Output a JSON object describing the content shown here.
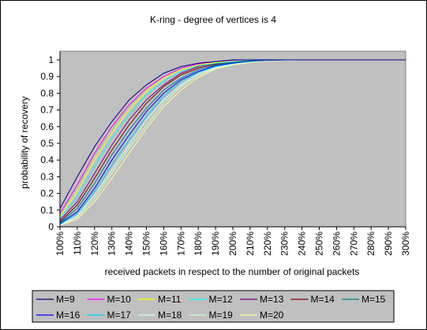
{
  "chart_data": {
    "type": "line",
    "title": "K-ring - degree of vertices is 4",
    "xlabel": "received packets in respect to the number of original packets",
    "ylabel": "probability of recovery",
    "x": [
      1.0,
      1.1,
      1.2,
      1.3,
      1.4,
      1.5,
      1.6,
      1.7,
      1.8,
      1.9,
      2.0,
      2.1,
      2.2,
      2.3,
      2.4,
      2.5,
      2.6,
      2.7,
      2.8,
      2.9,
      3.0
    ],
    "x_tick_labels": [
      "100%",
      "110%",
      "120%",
      "130%",
      "140%",
      "150%",
      "160%",
      "170%",
      "180%",
      "190%",
      "200%",
      "210%",
      "220%",
      "230%",
      "240%",
      "250%",
      "260%",
      "270%",
      "280%",
      "290%",
      "300%"
    ],
    "y_tick_labels": [
      "0",
      "0.1",
      "0.2",
      "0.3",
      "0.4",
      "0.5",
      "0.6",
      "0.7",
      "0.8",
      "0.9",
      "1"
    ],
    "xlim": [
      1.0,
      3.0
    ],
    "ylim": [
      0,
      1.05
    ],
    "grid": false,
    "plot_background": "#C0C0C0",
    "legend_placement": "bottom",
    "series": [
      {
        "name": "M=9",
        "color": "#000080",
        "values": [
          0.11,
          0.3,
          0.48,
          0.63,
          0.76,
          0.85,
          0.92,
          0.96,
          0.98,
          0.99,
          1.0,
          1.0,
          1.0,
          1.0,
          1.0,
          1.0,
          1.0,
          1.0,
          1.0,
          1.0,
          1.0
        ]
      },
      {
        "name": "M=10",
        "color": "#FF00FF",
        "values": [
          0.08,
          0.25,
          0.44,
          0.6,
          0.73,
          0.83,
          0.9,
          0.95,
          0.975,
          0.99,
          0.997,
          1.0,
          1.0,
          1.0,
          1.0,
          1.0,
          1.0,
          1.0,
          1.0,
          1.0,
          1.0
        ]
      },
      {
        "name": "M=11",
        "color": "#FFFF00",
        "values": [
          0.06,
          0.21,
          0.4,
          0.56,
          0.7,
          0.81,
          0.89,
          0.94,
          0.97,
          0.985,
          0.995,
          1.0,
          1.0,
          1.0,
          1.0,
          1.0,
          1.0,
          1.0,
          1.0,
          1.0,
          1.0
        ]
      },
      {
        "name": "M=12",
        "color": "#00FFFF",
        "values": [
          0.05,
          0.18,
          0.36,
          0.53,
          0.67,
          0.79,
          0.87,
          0.93,
          0.965,
          0.98,
          0.99,
          0.998,
          1.0,
          1.0,
          1.0,
          1.0,
          1.0,
          1.0,
          1.0,
          1.0,
          1.0
        ]
      },
      {
        "name": "M=13",
        "color": "#800080",
        "values": [
          0.04,
          0.15,
          0.32,
          0.49,
          0.64,
          0.76,
          0.85,
          0.92,
          0.96,
          0.98,
          0.99,
          0.997,
          1.0,
          1.0,
          1.0,
          1.0,
          1.0,
          1.0,
          1.0,
          1.0,
          1.0
        ]
      },
      {
        "name": "M=14",
        "color": "#800000",
        "values": [
          0.03,
          0.13,
          0.29,
          0.46,
          0.61,
          0.74,
          0.84,
          0.91,
          0.95,
          0.975,
          0.99,
          0.996,
          1.0,
          1.0,
          1.0,
          1.0,
          1.0,
          1.0,
          1.0,
          1.0,
          1.0
        ]
      },
      {
        "name": "M=15",
        "color": "#008080",
        "values": [
          0.025,
          0.11,
          0.26,
          0.43,
          0.58,
          0.71,
          0.82,
          0.89,
          0.94,
          0.97,
          0.985,
          0.995,
          0.999,
          1.0,
          1.0,
          1.0,
          1.0,
          1.0,
          1.0,
          1.0,
          1.0
        ]
      },
      {
        "name": "M=16",
        "color": "#0000FF",
        "values": [
          0.02,
          0.09,
          0.23,
          0.4,
          0.55,
          0.69,
          0.8,
          0.88,
          0.93,
          0.965,
          0.98,
          0.993,
          0.998,
          1.0,
          1.0,
          1.0,
          1.0,
          1.0,
          1.0,
          1.0,
          1.0
        ]
      },
      {
        "name": "M=17",
        "color": "#00CCFF",
        "values": [
          0.015,
          0.08,
          0.21,
          0.37,
          0.52,
          0.66,
          0.78,
          0.87,
          0.925,
          0.96,
          0.98,
          0.99,
          0.997,
          1.0,
          1.0,
          1.0,
          1.0,
          1.0,
          1.0,
          1.0,
          1.0
        ]
      },
      {
        "name": "M=18",
        "color": "#CCFFFF",
        "values": [
          0.012,
          0.065,
          0.19,
          0.34,
          0.49,
          0.64,
          0.76,
          0.85,
          0.915,
          0.955,
          0.975,
          0.99,
          0.996,
          0.999,
          1.0,
          1.0,
          1.0,
          1.0,
          1.0,
          1.0,
          1.0
        ]
      },
      {
        "name": "M=19",
        "color": "#CCFFCC",
        "values": [
          0.01,
          0.055,
          0.17,
          0.32,
          0.47,
          0.61,
          0.74,
          0.84,
          0.905,
          0.95,
          0.973,
          0.988,
          0.995,
          0.999,
          1.0,
          1.0,
          1.0,
          1.0,
          1.0,
          1.0,
          1.0
        ]
      },
      {
        "name": "M=20",
        "color": "#FFFF99",
        "values": [
          0.008,
          0.045,
          0.15,
          0.29,
          0.44,
          0.59,
          0.72,
          0.82,
          0.895,
          0.945,
          0.97,
          0.985,
          0.994,
          0.998,
          1.0,
          1.0,
          1.0,
          1.0,
          1.0,
          1.0,
          1.0
        ]
      }
    ]
  }
}
